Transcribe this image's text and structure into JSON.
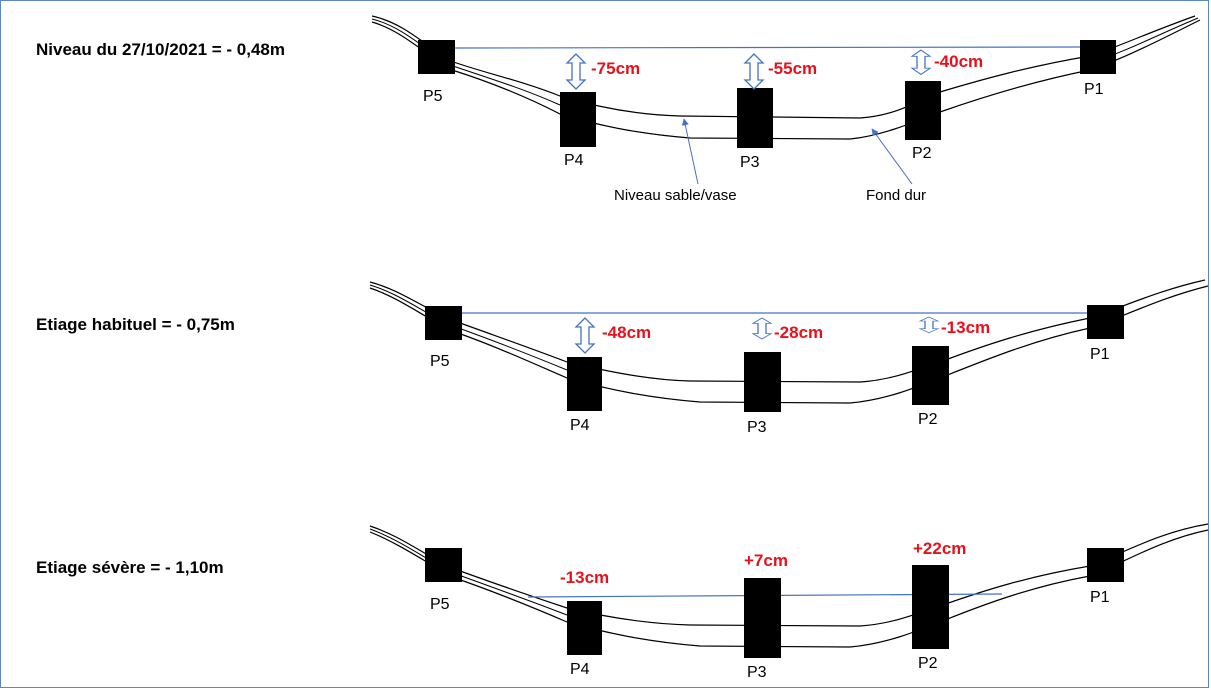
{
  "scenarios": [
    {
      "title": "Niveau du 27/10/2021 = - 0,48m",
      "labels": {
        "p5": "P5",
        "p4": "P4",
        "p3": "P3",
        "p2": "P2",
        "p1": "P1"
      },
      "values": {
        "p4": "-75cm",
        "p3": "-55cm",
        "p2": "-40cm"
      }
    },
    {
      "title": "Etiage habituel = - 0,75m",
      "labels": {
        "p5": "P5",
        "p4": "P4",
        "p3": "P3",
        "p2": "P2",
        "p1": "P1"
      },
      "values": {
        "p4": "-48cm",
        "p3": "-28cm",
        "p2": "-13cm"
      }
    },
    {
      "title": "Etiage sévère = - 1,10m",
      "labels": {
        "p5": "P5",
        "p4": "P4",
        "p3": "P3",
        "p2": "P2",
        "p1": "P1"
      },
      "values": {
        "p4": "-13cm",
        "p3": "+7cm",
        "p2": "+22cm"
      }
    }
  ],
  "annotations": {
    "sand_level": "Niveau sable/vase",
    "hard_bottom": "Fond dur"
  },
  "colors": {
    "water_line": "#4472c4",
    "value_text": "#e8111b",
    "post_fill": "#000000",
    "frame": "#5b87c5"
  }
}
